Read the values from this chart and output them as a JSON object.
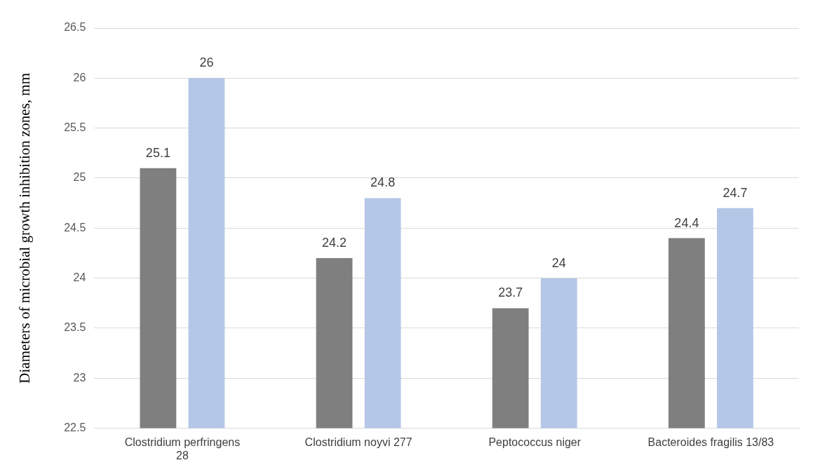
{
  "chart_data": {
    "type": "bar",
    "ylabel": "Diameters of microbial growth inhibition zones, mm",
    "categories": [
      "Clostridium perfringens 28",
      "Clostridium noyvi 277",
      "Peptococcus niger",
      "Bacteroides fragilis 13/83"
    ],
    "series": [
      {
        "color": "#7f7f7f",
        "values": [
          25.1,
          24.2,
          23.7,
          24.4
        ]
      },
      {
        "color": "#b4c7e7",
        "values": [
          26,
          24.8,
          24,
          24.7
        ]
      }
    ],
    "ylim": [
      22.5,
      26.5
    ],
    "yticks": [
      22.5,
      23,
      23.5,
      24,
      24.5,
      25,
      25.5,
      26,
      26.5
    ],
    "grid": "y",
    "legend": false,
    "data_labels": true
  }
}
